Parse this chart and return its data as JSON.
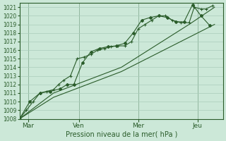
{
  "background_color": "#cce8d8",
  "grid_color": "#aaccbb",
  "line_color": "#2a5c2a",
  "xlabel": "Pression niveau de la mer( hPa )",
  "ylim": [
    1008,
    1021.5
  ],
  "yticks": [
    1008,
    1009,
    1010,
    1011,
    1012,
    1013,
    1014,
    1015,
    1016,
    1017,
    1018,
    1019,
    1020,
    1021
  ],
  "xlim": [
    0,
    12
  ],
  "xtick_labels": [
    "Mar",
    "Ven",
    "Mer",
    "Jeu"
  ],
  "xtick_positions": [
    0.5,
    3.5,
    7.0,
    10.5
  ],
  "vlines": [
    0.5,
    3.5,
    7.0,
    10.5
  ],
  "series": [
    {
      "x": [
        0,
        0.4,
        0.8,
        1.2,
        1.6,
        2.0,
        2.3,
        2.6,
        3.0,
        3.4,
        3.8,
        4.2,
        4.6,
        5.0,
        5.4,
        5.8,
        6.2,
        6.6,
        7.0,
        7.4,
        7.8,
        8.2,
        8.6,
        9.0,
        9.5,
        10.0,
        10.3,
        10.7,
        11.0,
        11.4
      ],
      "y": [
        1008.0,
        1009.0,
        1010.0,
        1011.0,
        1011.2,
        1011.4,
        1012.0,
        1012.5,
        1013.0,
        1015.0,
        1015.2,
        1015.5,
        1016.0,
        1016.2,
        1016.4,
        1016.5,
        1016.5,
        1017.0,
        1018.5,
        1019.0,
        1019.5,
        1020.0,
        1020.0,
        1019.5,
        1019.2,
        1019.2,
        1021.0,
        1020.8,
        1020.8,
        1021.2
      ],
      "marker": "+"
    },
    {
      "x": [
        0,
        0.6,
        1.2,
        1.8,
        2.4,
        2.8,
        3.2,
        3.7,
        4.2,
        4.7,
        5.2,
        5.7,
        6.2,
        6.7,
        7.2,
        7.7,
        8.2,
        8.7,
        9.2,
        9.7,
        10.2,
        10.7,
        11.2
      ],
      "y": [
        1008.0,
        1010.0,
        1011.0,
        1011.2,
        1011.5,
        1012.0,
        1012.0,
        1014.5,
        1015.8,
        1016.2,
        1016.4,
        1016.5,
        1016.8,
        1018.0,
        1019.5,
        1019.8,
        1020.0,
        1019.8,
        1019.3,
        1019.3,
        1021.3,
        1020.0,
        1018.9
      ],
      "marker": "D"
    },
    {
      "x": [
        0,
        2.0,
        4.0,
        6.0,
        8.0,
        10.0,
        11.5
      ],
      "y": [
        1008.0,
        1010.5,
        1012.0,
        1013.5,
        1015.5,
        1017.5,
        1019.0
      ],
      "marker": null
    },
    {
      "x": [
        0,
        2.0,
        4.0,
        6.0,
        8.0,
        10.0,
        11.5
      ],
      "y": [
        1008.0,
        1011.0,
        1012.5,
        1014.0,
        1016.5,
        1019.0,
        1021.0
      ],
      "marker": null
    }
  ]
}
